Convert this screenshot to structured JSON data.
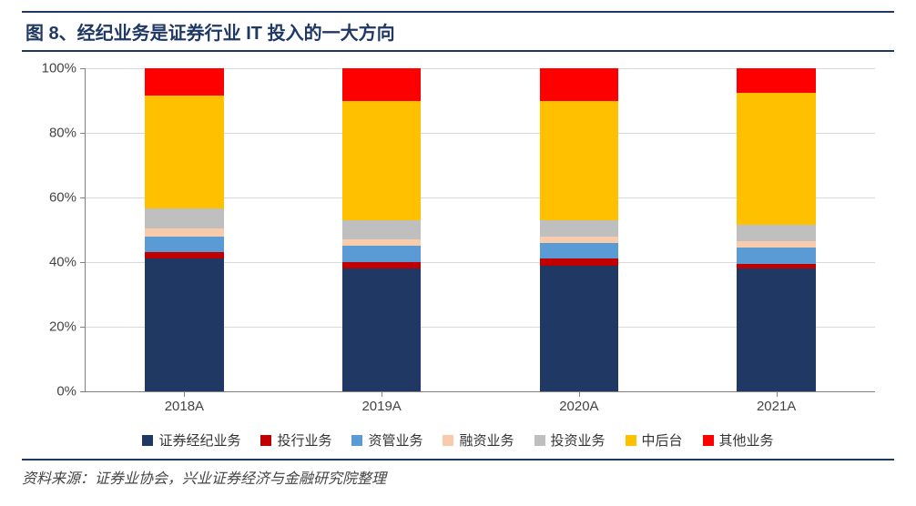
{
  "title": "图 8、经纪业务是证券行业 IT 投入的一大方向",
  "source": "资料来源：证券业协会，兴业证券经济与金融研究院整理",
  "chart": {
    "type": "stacked-bar-100",
    "categories": [
      "2018A",
      "2019A",
      "2020A",
      "2021A"
    ],
    "ylim": [
      0,
      100
    ],
    "ytick_step": 20,
    "y_suffix": "%",
    "bar_width_pct": 10,
    "gridline_color": "#d9d9d9",
    "axis_color": "#808080",
    "background_color": "#ffffff",
    "label_fontsize": 15,
    "series": [
      {
        "name": "证券经纪业务",
        "color": "#1f3864",
        "values": [
          41,
          38,
          39,
          38
        ]
      },
      {
        "name": "投行业务",
        "color": "#c00000",
        "values": [
          2,
          2,
          2,
          1.5
        ]
      },
      {
        "name": "资管业务",
        "color": "#5b9bd5",
        "values": [
          5,
          5,
          5,
          5
        ]
      },
      {
        "name": "融资业务",
        "color": "#f8cbad",
        "values": [
          2.5,
          2,
          2,
          2
        ]
      },
      {
        "name": "投资业务",
        "color": "#bfbfbf",
        "values": [
          6,
          6,
          5,
          5
        ]
      },
      {
        "name": "中后台",
        "color": "#ffc000",
        "values": [
          35,
          37,
          37,
          41
        ]
      },
      {
        "name": "其他业务",
        "color": "#ff0000",
        "values": [
          8.5,
          10,
          10,
          7.5
        ]
      }
    ]
  }
}
